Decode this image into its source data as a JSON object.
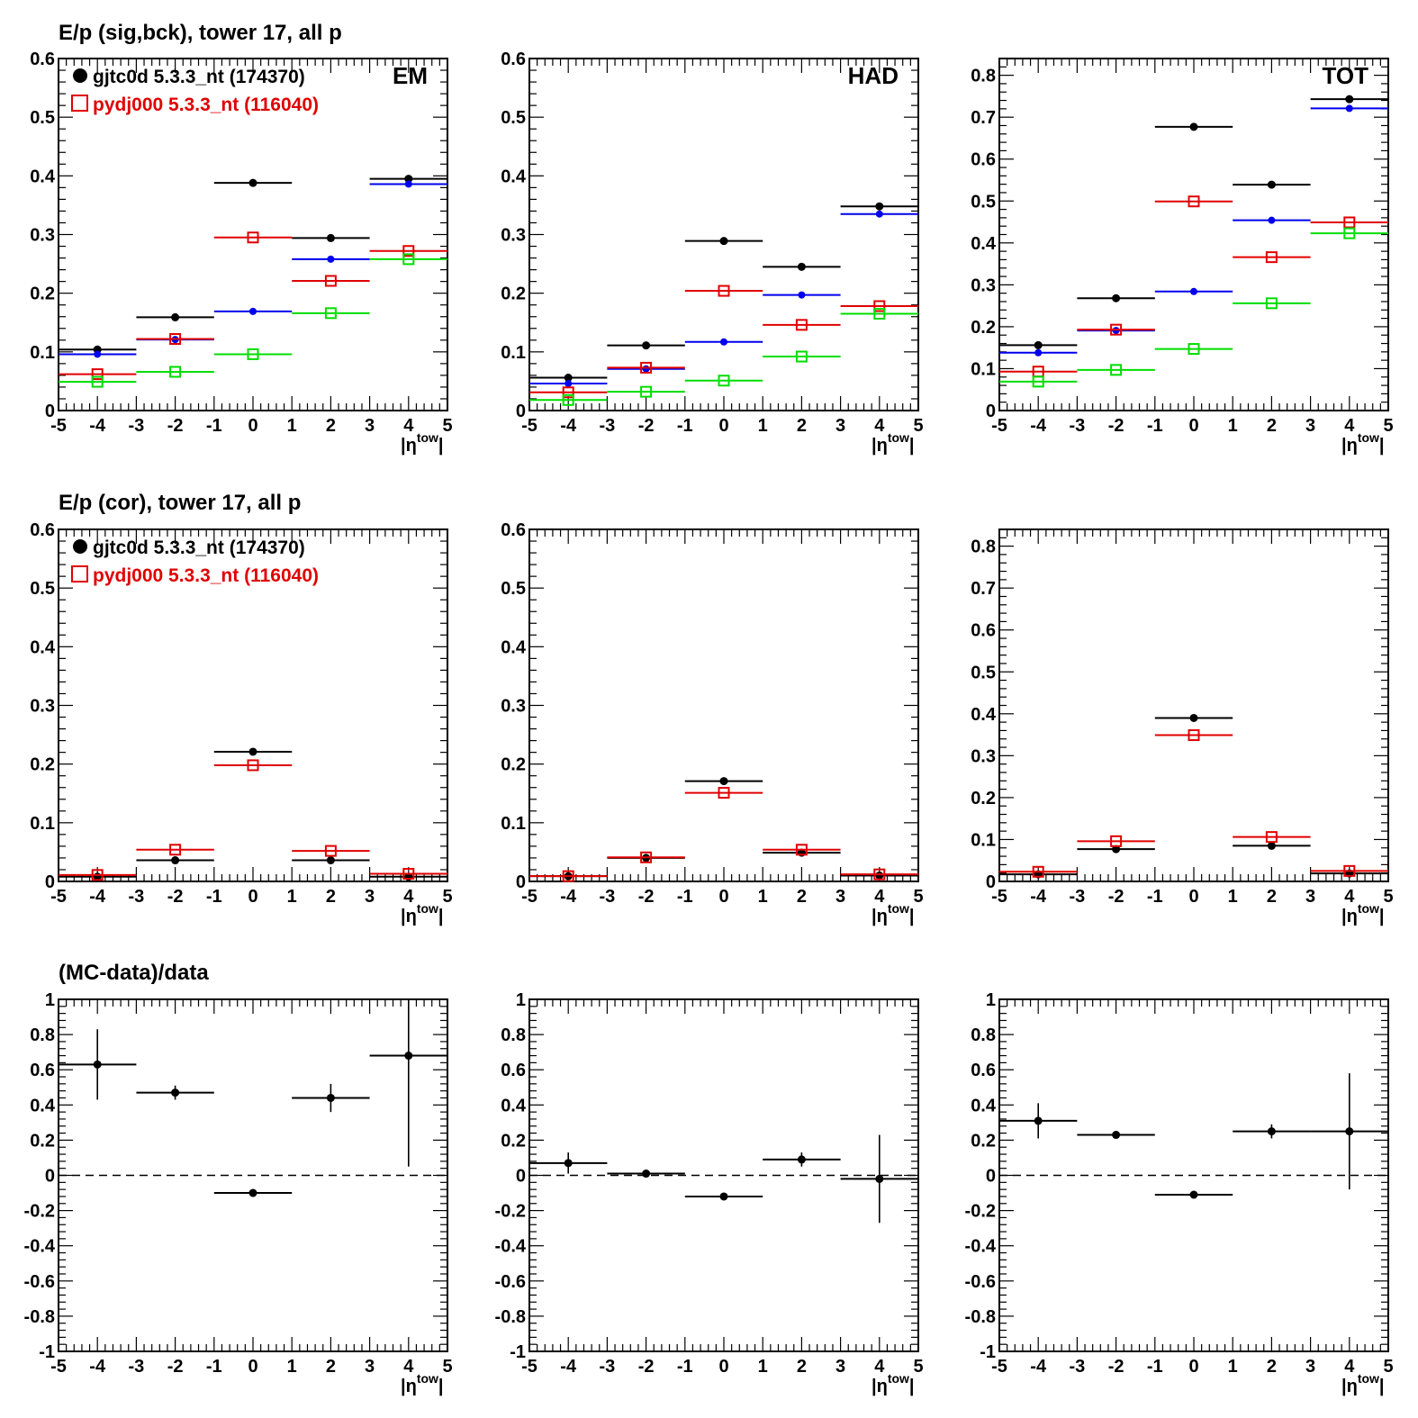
{
  "colors": {
    "black": "#000000",
    "red": "#e00000",
    "blue": "#0000ee",
    "green": "#00dd00"
  },
  "row_titles": [
    "E/p (sig,bck), tower 17, all p",
    "E/p (cor), tower 17, all p",
    "(MC-data)/data"
  ],
  "legend": {
    "data": "gjtc0d 5.3.3_nt (174370)",
    "mc": "pydj000 5.3.3_nt (116040)"
  },
  "x_axis": {
    "range": [
      -5,
      5
    ],
    "ticks": [
      "-5",
      "-4",
      "-3",
      "-2",
      "-1",
      "0",
      "1",
      "2",
      "3",
      "4",
      "5"
    ],
    "label": "|η",
    "label_sup": "tow",
    "label_close": "|"
  },
  "chart_data": [
    {
      "id": "r1-em",
      "type": "scatter",
      "tag": "EM",
      "ylim": [
        0,
        0.6
      ],
      "yticks": [
        "0",
        "0.1",
        "0.2",
        "0.3",
        "0.4",
        "0.5",
        "0.6"
      ],
      "series": [
        {
          "name": "gjtc0d 5.3.3_nt (174370)",
          "color": "black",
          "marker": "dot",
          "x": [
            -4,
            -2,
            0,
            2,
            4
          ],
          "y": [
            0.104,
            0.159,
            0.388,
            0.294,
            0.395
          ]
        },
        {
          "color": "blue",
          "marker": "smalldot",
          "x": [
            -4,
            -2,
            0,
            2,
            4
          ],
          "y": [
            0.096,
            0.121,
            0.169,
            0.258,
            0.386
          ]
        },
        {
          "name": "pydj000 5.3.3_nt (116040)",
          "color": "red",
          "marker": "square",
          "x": [
            -4,
            -2,
            0,
            2,
            4
          ],
          "y": [
            0.062,
            0.122,
            0.295,
            0.221,
            0.272
          ]
        },
        {
          "color": "green",
          "marker": "square",
          "x": [
            -4,
            -2,
            0,
            2,
            4
          ],
          "y": [
            0.049,
            0.066,
            0.096,
            0.166,
            0.258
          ]
        }
      ]
    },
    {
      "id": "r1-had",
      "type": "scatter",
      "tag": "HAD",
      "ylim": [
        0,
        0.6
      ],
      "yticks": [
        "0",
        "0.1",
        "0.2",
        "0.3",
        "0.4",
        "0.5",
        "0.6"
      ],
      "series": [
        {
          "color": "black",
          "marker": "dot",
          "x": [
            -4,
            -2,
            0,
            2,
            4
          ],
          "y": [
            0.056,
            0.111,
            0.289,
            0.245,
            0.348
          ]
        },
        {
          "color": "blue",
          "marker": "smalldot",
          "x": [
            -4,
            -2,
            0,
            2,
            4
          ],
          "y": [
            0.046,
            0.071,
            0.117,
            0.197,
            0.335
          ]
        },
        {
          "color": "red",
          "marker": "square",
          "x": [
            -4,
            -2,
            0,
            2,
            4
          ],
          "y": [
            0.031,
            0.073,
            0.204,
            0.146,
            0.178
          ]
        },
        {
          "color": "green",
          "marker": "square",
          "x": [
            -4,
            -2,
            0,
            2,
            4
          ],
          "y": [
            0.018,
            0.032,
            0.051,
            0.092,
            0.165
          ]
        }
      ]
    },
    {
      "id": "r1-tot",
      "type": "scatter",
      "tag": "TOT",
      "ylim": [
        0,
        0.84
      ],
      "yticks": [
        "0",
        "0.1",
        "0.2",
        "0.3",
        "0.4",
        "0.5",
        "0.6",
        "0.7",
        "0.8"
      ],
      "series": [
        {
          "color": "black",
          "marker": "dot",
          "x": [
            -4,
            -2,
            0,
            2,
            4
          ],
          "y": [
            0.156,
            0.268,
            0.677,
            0.539,
            0.743
          ]
        },
        {
          "color": "blue",
          "marker": "smalldot",
          "x": [
            -4,
            -2,
            0,
            2,
            4
          ],
          "y": [
            0.138,
            0.191,
            0.284,
            0.454,
            0.721
          ]
        },
        {
          "color": "red",
          "marker": "square",
          "x": [
            -4,
            -2,
            0,
            2,
            4
          ],
          "y": [
            0.093,
            0.193,
            0.499,
            0.366,
            0.449
          ]
        },
        {
          "color": "green",
          "marker": "square",
          "x": [
            -4,
            -2,
            0,
            2,
            4
          ],
          "y": [
            0.069,
            0.097,
            0.147,
            0.256,
            0.423
          ]
        }
      ]
    },
    {
      "id": "r2-em",
      "type": "scatter",
      "tag": "",
      "ylim": [
        0,
        0.6
      ],
      "yticks": [
        "0",
        "0.1",
        "0.2",
        "0.3",
        "0.4",
        "0.5",
        "0.6"
      ],
      "series": [
        {
          "name": "gjtc0d 5.3.3_nt (174370)",
          "color": "black",
          "marker": "dot",
          "x": [
            -4,
            -2,
            0,
            2,
            4
          ],
          "y": [
            0.008,
            0.036,
            0.221,
            0.036,
            0.008
          ]
        },
        {
          "name": "pydj000 5.3.3_nt (116040)",
          "color": "red",
          "marker": "square",
          "x": [
            -4,
            -2,
            0,
            2,
            4
          ],
          "y": [
            0.011,
            0.054,
            0.198,
            0.052,
            0.013
          ]
        }
      ]
    },
    {
      "id": "r2-had",
      "type": "scatter",
      "tag": "",
      "ylim": [
        0,
        0.6
      ],
      "yticks": [
        "0",
        "0.1",
        "0.2",
        "0.3",
        "0.4",
        "0.5",
        "0.6"
      ],
      "series": [
        {
          "color": "black",
          "marker": "dot",
          "x": [
            -4,
            -2,
            0,
            2,
            4
          ],
          "y": [
            0.009,
            0.04,
            0.171,
            0.049,
            0.01
          ]
        },
        {
          "color": "red",
          "marker": "square",
          "x": [
            -4,
            -2,
            0,
            2,
            4
          ],
          "y": [
            0.009,
            0.041,
            0.151,
            0.054,
            0.012
          ]
        }
      ]
    },
    {
      "id": "r2-tot",
      "type": "scatter",
      "tag": "",
      "ylim": [
        0,
        0.84
      ],
      "yticks": [
        "0",
        "0.1",
        "0.2",
        "0.3",
        "0.4",
        "0.5",
        "0.6",
        "0.7",
        "0.8"
      ],
      "series": [
        {
          "color": "black",
          "marker": "dot",
          "x": [
            -4,
            -2,
            0,
            2,
            4
          ],
          "y": [
            0.017,
            0.077,
            0.39,
            0.085,
            0.019
          ]
        },
        {
          "color": "red",
          "marker": "square",
          "x": [
            -4,
            -2,
            0,
            2,
            4
          ],
          "y": [
            0.023,
            0.096,
            0.349,
            0.106,
            0.025
          ]
        }
      ]
    },
    {
      "id": "r3-em",
      "type": "scatter",
      "tag": "",
      "ylim": [
        -1,
        1
      ],
      "zero_line": true,
      "yticks": [
        "-1",
        "-0.8",
        "-0.6",
        "-0.4",
        "-0.2",
        "0",
        "0.2",
        "0.4",
        "0.6",
        "0.8",
        "1"
      ],
      "series": [
        {
          "color": "black",
          "marker": "dot",
          "x": [
            -4,
            -2,
            0,
            2,
            4
          ],
          "y": [
            0.63,
            0.47,
            -0.1,
            0.44,
            0.68
          ],
          "err": [
            0.2,
            0.04,
            0.01,
            0.08,
            0.63
          ]
        }
      ]
    },
    {
      "id": "r3-had",
      "type": "scatter",
      "tag": "",
      "ylim": [
        -1,
        1
      ],
      "zero_line": true,
      "yticks": [
        "-1",
        "-0.8",
        "-0.6",
        "-0.4",
        "-0.2",
        "0",
        "0.2",
        "0.4",
        "0.6",
        "0.8",
        "1"
      ],
      "series": [
        {
          "color": "black",
          "marker": "dot",
          "x": [
            -4,
            -2,
            0,
            2,
            4
          ],
          "y": [
            0.07,
            0.01,
            -0.12,
            0.09,
            -0.02
          ],
          "err": [
            0.06,
            0.02,
            0.01,
            0.04,
            0.25
          ]
        }
      ]
    },
    {
      "id": "r3-tot",
      "type": "scatter",
      "tag": "",
      "ylim": [
        -1,
        1
      ],
      "zero_line": true,
      "yticks": [
        "-1",
        "-0.8",
        "-0.6",
        "-0.4",
        "-0.2",
        "0",
        "0.2",
        "0.4",
        "0.6",
        "0.8",
        "1"
      ],
      "series": [
        {
          "color": "black",
          "marker": "dot",
          "x": [
            -4,
            -2,
            0,
            2,
            4
          ],
          "y": [
            0.31,
            0.23,
            -0.11,
            0.25,
            0.25
          ],
          "err": [
            0.1,
            0.02,
            0.01,
            0.04,
            0.33
          ]
        }
      ]
    }
  ]
}
